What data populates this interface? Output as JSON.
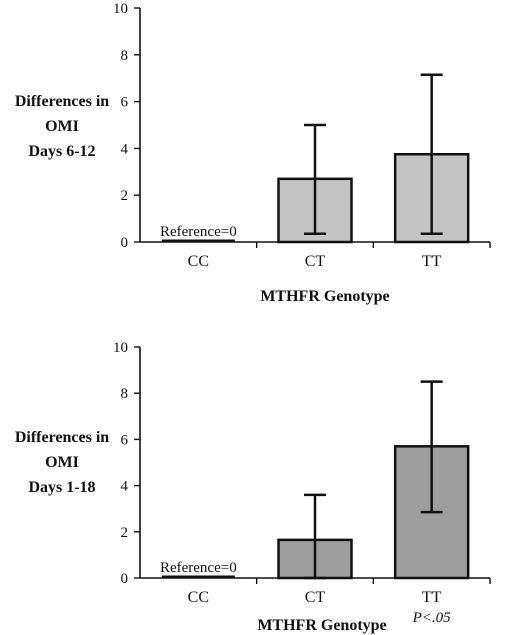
{
  "chart_data": [
    {
      "type": "bar",
      "categories": [
        "CC",
        "CT",
        "TT"
      ],
      "values": [
        0,
        2.7,
        3.75
      ],
      "error_bars": [
        {
          "low": 0,
          "high": 0
        },
        {
          "low": 0.35,
          "high": 5.0
        },
        {
          "low": 0.35,
          "high": 7.15
        }
      ],
      "ylabel_lines": [
        "Differences in",
        "OMI",
        "Days 6-12"
      ],
      "xlabel": "MTHFR Genotype",
      "ylim": [
        0,
        10
      ],
      "yticks": [
        0,
        2,
        4,
        6,
        8,
        10
      ],
      "annotations": {
        "reference": "Reference=0",
        "significance": ""
      },
      "grid": false,
      "bar_color": "#c4c4c4"
    },
    {
      "type": "bar",
      "categories": [
        "CC",
        "CT",
        "TT"
      ],
      "values": [
        0,
        1.65,
        5.7
      ],
      "error_bars": [
        {
          "low": 0,
          "high": 0
        },
        {
          "low": 0,
          "high": 3.6
        },
        {
          "low": 2.85,
          "high": 8.5
        }
      ],
      "ylabel_lines": [
        "Differences in",
        "OMI",
        "Days 1-18"
      ],
      "xlabel": "MTHFR Genotype",
      "ylim": [
        0,
        10
      ],
      "yticks": [
        0,
        2,
        4,
        6,
        8,
        10
      ],
      "annotations": {
        "reference": "Reference=0",
        "significance": "P<.05"
      },
      "grid": false,
      "bar_color": "#9e9e9e"
    }
  ]
}
